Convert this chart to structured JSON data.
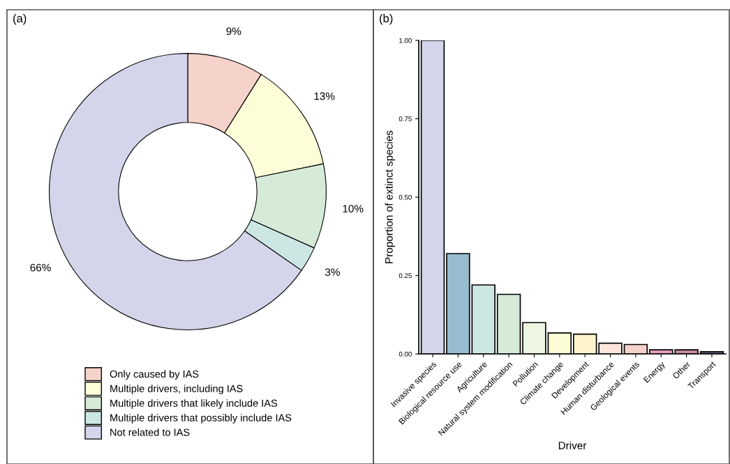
{
  "chart_data": [
    {
      "type": "donut",
      "title": "(a)",
      "categories": [
        "Only caused by IAS",
        "Multiple drivers, including IAS",
        "Multiple drivers that likely include IAS",
        "Multiple drivers that possibly include IAS",
        "Not related to IAS"
      ],
      "values": [
        9,
        13,
        10,
        3,
        66
      ],
      "value_labels": [
        "9%",
        "13%",
        "10%",
        "3%",
        "66%"
      ],
      "colors": [
        "#f5d2ca",
        "#fdfdd8",
        "#d6ead8",
        "#cce6e3",
        "#d4d5ea"
      ],
      "legend": "bottom"
    },
    {
      "type": "bar",
      "title": "(b)",
      "xlabel": "Driver",
      "ylabel": "Proportion of extinct species",
      "categories": [
        "Invasive species",
        "Biological resource use",
        "Agriculture",
        "Natural system modification",
        "Pollution",
        "Climate change",
        "Development",
        "Human disturbance",
        "Geological events",
        "Energy",
        "Other",
        "Transport"
      ],
      "values": [
        1.0,
        0.32,
        0.22,
        0.19,
        0.1,
        0.067,
        0.063,
        0.034,
        0.03,
        0.013,
        0.013,
        0.007
      ],
      "colors": [
        "#d4d5ea",
        "#97bccf",
        "#cce6e3",
        "#d6ead8",
        "#ecf6e2",
        "#fcfdd7",
        "#fdf4cd",
        "#fce6dc",
        "#f5d2ca",
        "#e79bbd",
        "#c3879f",
        "#756487"
      ],
      "ylim": [
        0,
        1.0
      ],
      "yticks": [
        {
          "value": 0,
          "label": "0.00"
        },
        {
          "value": 0.25,
          "label": "0.25"
        },
        {
          "value": 0.5,
          "label": "0.50"
        },
        {
          "value": 0.75,
          "label": "0.75"
        },
        {
          "value": 1.0,
          "label": "1.00"
        }
      ],
      "grid": false
    }
  ]
}
